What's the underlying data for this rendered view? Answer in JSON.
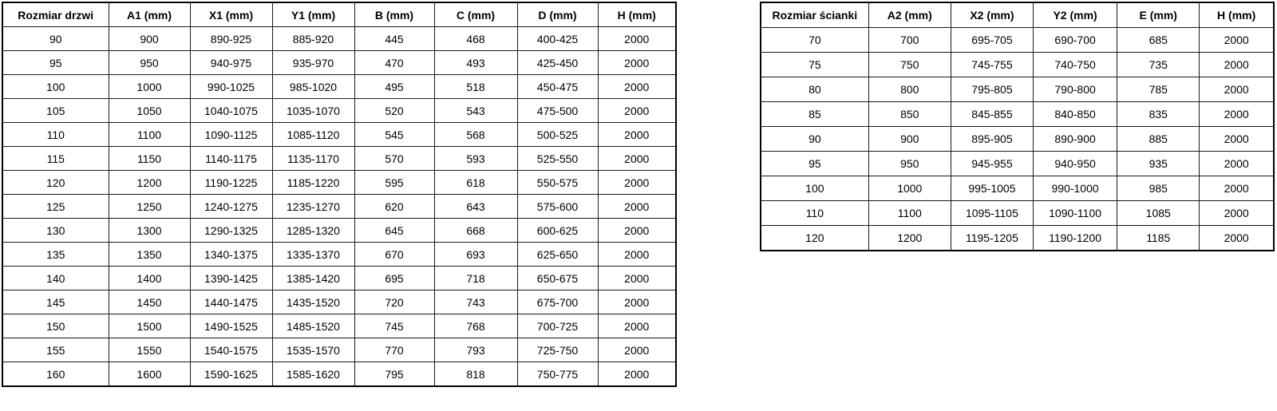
{
  "colors": {
    "background": "#ffffff",
    "border": "#000000",
    "text": "#000000"
  },
  "door_table": {
    "title": "Rozmiar drzwi",
    "headers": [
      "Rozmiar drzwi",
      "A1 (mm)",
      "X1 (mm)",
      "Y1 (mm)",
      "B (mm)",
      "C (mm)",
      "D (mm)",
      "H (mm)"
    ],
    "rows": [
      [
        "90",
        "900",
        "890-925",
        "885-920",
        "445",
        "468",
        "400-425",
        "2000"
      ],
      [
        "95",
        "950",
        "940-975",
        "935-970",
        "470",
        "493",
        "425-450",
        "2000"
      ],
      [
        "100",
        "1000",
        "990-1025",
        "985-1020",
        "495",
        "518",
        "450-475",
        "2000"
      ],
      [
        "105",
        "1050",
        "1040-1075",
        "1035-1070",
        "520",
        "543",
        "475-500",
        "2000"
      ],
      [
        "110",
        "1100",
        "1090-1125",
        "1085-1120",
        "545",
        "568",
        "500-525",
        "2000"
      ],
      [
        "115",
        "1150",
        "1140-1175",
        "1135-1170",
        "570",
        "593",
        "525-550",
        "2000"
      ],
      [
        "120",
        "1200",
        "1190-1225",
        "1185-1220",
        "595",
        "618",
        "550-575",
        "2000"
      ],
      [
        "125",
        "1250",
        "1240-1275",
        "1235-1270",
        "620",
        "643",
        "575-600",
        "2000"
      ],
      [
        "130",
        "1300",
        "1290-1325",
        "1285-1320",
        "645",
        "668",
        "600-625",
        "2000"
      ],
      [
        "135",
        "1350",
        "1340-1375",
        "1335-1370",
        "670",
        "693",
        "625-650",
        "2000"
      ],
      [
        "140",
        "1400",
        "1390-1425",
        "1385-1420",
        "695",
        "718",
        "650-675",
        "2000"
      ],
      [
        "145",
        "1450",
        "1440-1475",
        "1435-1520",
        "720",
        "743",
        "675-700",
        "2000"
      ],
      [
        "150",
        "1500",
        "1490-1525",
        "1485-1520",
        "745",
        "768",
        "700-725",
        "2000"
      ],
      [
        "155",
        "1550",
        "1540-1575",
        "1535-1570",
        "770",
        "793",
        "725-750",
        "2000"
      ],
      [
        "160",
        "1600",
        "1590-1625",
        "1585-1620",
        "795",
        "818",
        "750-775",
        "2000"
      ]
    ]
  },
  "wall_table": {
    "title": "Rozmiar ścianki",
    "headers": [
      "Rozmiar ścianki",
      "A2 (mm)",
      "X2 (mm)",
      "Y2 (mm)",
      "E (mm)",
      "H (mm)"
    ],
    "rows": [
      [
        "70",
        "700",
        "695-705",
        "690-700",
        "685",
        "2000"
      ],
      [
        "75",
        "750",
        "745-755",
        "740-750",
        "735",
        "2000"
      ],
      [
        "80",
        "800",
        "795-805",
        "790-800",
        "785",
        "2000"
      ],
      [
        "85",
        "850",
        "845-855",
        "840-850",
        "835",
        "2000"
      ],
      [
        "90",
        "900",
        "895-905",
        "890-900",
        "885",
        "2000"
      ],
      [
        "95",
        "950",
        "945-955",
        "940-950",
        "935",
        "2000"
      ],
      [
        "100",
        "1000",
        "995-1005",
        "990-1000",
        "985",
        "2000"
      ],
      [
        "110",
        "1100",
        "1095-1105",
        "1090-1100",
        "1085",
        "2000"
      ],
      [
        "120",
        "1200",
        "1195-1205",
        "1190-1200",
        "1185",
        "2000"
      ]
    ]
  }
}
